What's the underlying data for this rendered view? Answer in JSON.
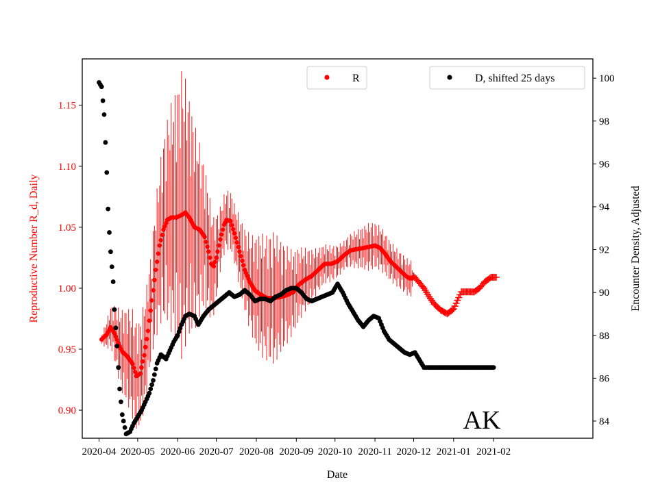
{
  "chart_data": {
    "type": "scatter",
    "title": "",
    "annotation": "AK",
    "xlabel": "Date",
    "ylabel_left": "Reproductive Number R_d, Daily",
    "ylabel_right": "Encounter Density, Adjusted",
    "x_range_days": [
      -13,
      383
    ],
    "ylim_left": [
      0.877,
      1.188
    ],
    "ylim_right": [
      83.2,
      100.9
    ],
    "x_ticks": [
      {
        "label": "2020-04",
        "day": 0
      },
      {
        "label": "2020-05",
        "day": 30
      },
      {
        "label": "2020-06",
        "day": 61
      },
      {
        "label": "2020-07",
        "day": 91
      },
      {
        "label": "2020-08",
        "day": 122
      },
      {
        "label": "2020-09",
        "day": 153
      },
      {
        "label": "2020-10",
        "day": 183
      },
      {
        "label": "2020-11",
        "day": 214
      },
      {
        "label": "2020-12",
        "day": 244
      },
      {
        "label": "2021-01",
        "day": 275
      },
      {
        "label": "2021-02",
        "day": 306
      }
    ],
    "y_ticks_left": [
      "0.90",
      "0.95",
      "1.00",
      "1.05",
      "1.10",
      "1.15"
    ],
    "y_ticks_left_values": [
      0.9,
      0.95,
      1.0,
      1.05,
      1.1,
      1.15
    ],
    "y_ticks_right": [
      "84",
      "86",
      "88",
      "90",
      "92",
      "94",
      "96",
      "98",
      "100"
    ],
    "y_ticks_right_values": [
      84,
      86,
      88,
      90,
      92,
      94,
      96,
      98,
      100
    ],
    "legend": [
      {
        "label": "R",
        "color": "#ff0000",
        "position": "top-center"
      },
      {
        "label": "D, shifted 25 days",
        "color": "#000000",
        "position": "top-right"
      }
    ],
    "colors": {
      "R": "#ff0000",
      "D": "#000000",
      "left_axis": "#ff0000",
      "right_axis": "#000000"
    },
    "series": [
      {
        "name": "R",
        "axis": "left",
        "marker": "dot",
        "day_range": [
          2,
          243
        ],
        "knots": [
          [
            2,
            0.958
          ],
          [
            6,
            0.962
          ],
          [
            9,
            0.968
          ],
          [
            12,
            0.963
          ],
          [
            15,
            0.955
          ],
          [
            18,
            0.948
          ],
          [
            22,
            0.944
          ],
          [
            26,
            0.938
          ],
          [
            29,
            0.928
          ],
          [
            32,
            0.93
          ],
          [
            35,
            0.945
          ],
          [
            38,
            0.965
          ],
          [
            41,
            0.99
          ],
          [
            44,
            1.015
          ],
          [
            47,
            1.035
          ],
          [
            50,
            1.048
          ],
          [
            53,
            1.056
          ],
          [
            56,
            1.058
          ],
          [
            60,
            1.058
          ],
          [
            64,
            1.06
          ],
          [
            67,
            1.062
          ],
          [
            70,
            1.058
          ],
          [
            74,
            1.05
          ],
          [
            78,
            1.048
          ],
          [
            82,
            1.042
          ],
          [
            85,
            1.03
          ],
          [
            87,
            1.02
          ],
          [
            89,
            1.018
          ],
          [
            91,
            1.025
          ],
          [
            94,
            1.04
          ],
          [
            97,
            1.052
          ],
          [
            99,
            1.056
          ],
          [
            102,
            1.055
          ],
          [
            105,
            1.045
          ],
          [
            109,
            1.03
          ],
          [
            113,
            1.015
          ],
          [
            117,
            1.005
          ],
          [
            121,
            0.998
          ],
          [
            125,
            0.995
          ],
          [
            130,
            0.992
          ],
          [
            136,
            0.992
          ],
          [
            142,
            0.993
          ],
          [
            147,
            0.995
          ],
          [
            151,
            0.997
          ],
          [
            155,
            1.003
          ],
          [
            160,
            1.007
          ],
          [
            165,
            1.01
          ],
          [
            170,
            1.015
          ],
          [
            175,
            1.02
          ],
          [
            180,
            1.02
          ],
          [
            185,
            1.022
          ],
          [
            190,
            1.027
          ],
          [
            195,
            1.031
          ],
          [
            200,
            1.032
          ],
          [
            205,
            1.033
          ],
          [
            210,
            1.034
          ],
          [
            214,
            1.035
          ],
          [
            218,
            1.033
          ],
          [
            222,
            1.028
          ],
          [
            226,
            1.022
          ],
          [
            230,
            1.018
          ],
          [
            234,
            1.014
          ],
          [
            238,
            1.01
          ],
          [
            241,
            1.008
          ],
          [
            243,
            1.008
          ]
        ],
        "error_half_width_peaks": [
          [
            2,
            0.004
          ],
          [
            18,
            0.035
          ],
          [
            26,
            0.045
          ],
          [
            40,
            0.045
          ],
          [
            58,
            0.1
          ],
          [
            64,
            0.12
          ],
          [
            70,
            0.1
          ],
          [
            80,
            0.065
          ],
          [
            95,
            0.025
          ],
          [
            105,
            0.025
          ],
          [
            125,
            0.05
          ],
          [
            135,
            0.055
          ],
          [
            150,
            0.035
          ],
          [
            170,
            0.018
          ],
          [
            190,
            0.012
          ],
          [
            210,
            0.02
          ],
          [
            230,
            0.016
          ],
          [
            243,
            0.015
          ]
        ]
      },
      {
        "name": "R forecast",
        "axis": "left",
        "marker": "plus",
        "day_range": [
          244,
          308
        ],
        "knots": [
          [
            244,
            1.01
          ],
          [
            248,
            1.005
          ],
          [
            252,
            1.0
          ],
          [
            256,
            0.993
          ],
          [
            260,
            0.987
          ],
          [
            265,
            0.982
          ],
          [
            270,
            0.979
          ],
          [
            275,
            0.983
          ],
          [
            278,
            0.99
          ],
          [
            281,
            0.997
          ],
          [
            286,
            0.997
          ],
          [
            291,
            0.997
          ],
          [
            295,
            1.0
          ],
          [
            299,
            1.005
          ],
          [
            304,
            1.009
          ],
          [
            308,
            1.009
          ]
        ]
      },
      {
        "name": "D, shifted 25 days",
        "axis": "right",
        "marker": "dot",
        "day_range": [
          0,
          306
        ],
        "knots": [
          [
            0,
            99.8
          ],
          [
            2,
            99.6
          ],
          [
            4,
            98.3
          ],
          [
            5,
            97.0
          ],
          [
            6,
            95.6
          ],
          [
            7,
            93.9
          ],
          [
            8,
            92.8
          ],
          [
            9,
            91.9
          ],
          [
            11,
            90.5
          ],
          [
            12,
            89.2
          ],
          [
            14,
            87.5
          ],
          [
            16,
            85.5
          ],
          [
            18,
            84.3
          ],
          [
            21,
            83.4
          ],
          [
            24,
            83.5
          ],
          [
            27,
            83.9
          ],
          [
            30,
            84.2
          ],
          [
            33,
            84.5
          ],
          [
            36,
            84.9
          ],
          [
            39,
            85.3
          ],
          [
            42,
            85.9
          ],
          [
            45,
            86.7
          ],
          [
            48,
            87.1
          ],
          [
            52,
            86.9
          ],
          [
            55,
            87.3
          ],
          [
            58,
            87.7
          ],
          [
            61,
            88.0
          ],
          [
            64,
            88.5
          ],
          [
            67,
            88.9
          ],
          [
            70,
            89.0
          ],
          [
            74,
            88.9
          ],
          [
            77,
            88.5
          ],
          [
            81,
            88.9
          ],
          [
            85,
            89.2
          ],
          [
            89,
            89.4
          ],
          [
            93,
            89.6
          ],
          [
            97,
            89.8
          ],
          [
            101,
            90.0
          ],
          [
            105,
            89.8
          ],
          [
            109,
            89.9
          ],
          [
            113,
            90.1
          ],
          [
            117,
            89.9
          ],
          [
            121,
            89.6
          ],
          [
            125,
            89.7
          ],
          [
            129,
            89.7
          ],
          [
            133,
            89.6
          ],
          [
            137,
            89.8
          ],
          [
            141,
            89.9
          ],
          [
            145,
            90.1
          ],
          [
            149,
            90.2
          ],
          [
            153,
            90.2
          ],
          [
            157,
            90.0
          ],
          [
            161,
            89.7
          ],
          [
            165,
            89.6
          ],
          [
            169,
            89.7
          ],
          [
            173,
            89.8
          ],
          [
            177,
            89.9
          ],
          [
            181,
            90.0
          ],
          [
            185,
            90.4
          ],
          [
            189,
            90.0
          ],
          [
            193,
            89.5
          ],
          [
            197,
            89.1
          ],
          [
            201,
            88.7
          ],
          [
            205,
            88.4
          ],
          [
            209,
            88.7
          ],
          [
            213,
            88.9
          ],
          [
            217,
            88.8
          ],
          [
            221,
            88.2
          ],
          [
            225,
            87.8
          ],
          [
            229,
            87.6
          ],
          [
            233,
            87.4
          ],
          [
            237,
            87.2
          ],
          [
            241,
            87.1
          ],
          [
            245,
            87.2
          ],
          [
            249,
            86.8
          ],
          [
            252,
            86.5
          ],
          [
            255,
            86.5
          ],
          [
            260,
            86.5
          ],
          [
            270,
            86.5
          ],
          [
            280,
            86.5
          ],
          [
            290,
            86.5
          ],
          [
            300,
            86.5
          ],
          [
            306,
            86.5
          ]
        ]
      }
    ]
  }
}
